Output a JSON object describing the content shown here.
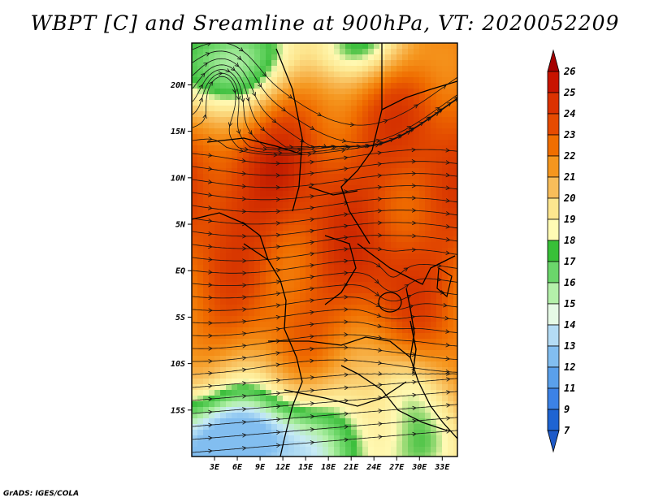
{
  "title": "WBPT [C] and Sreamline at 900hPa, VT: 2020052209",
  "credit": "GrADS: IGES/COLA",
  "map": {
    "lat_range": [
      -20,
      24.5
    ],
    "lon_range": [
      0,
      35
    ],
    "lat_labels": [
      "20N",
      "15N",
      "10N",
      "5N",
      "EQ",
      "5S",
      "10S",
      "15S"
    ],
    "lat_values": [
      20,
      15,
      10,
      5,
      0,
      -5,
      -10,
      -15
    ],
    "lon_labels": [
      "3E",
      "6E",
      "9E",
      "12E",
      "15E",
      "18E",
      "21E",
      "24E",
      "27E",
      "30E",
      "33E"
    ],
    "lon_values": [
      3,
      6,
      9,
      12,
      15,
      18,
      21,
      24,
      27,
      30,
      33
    ]
  },
  "colorbar": {
    "labels": [
      "26",
      "25",
      "24",
      "23",
      "22",
      "21",
      "20",
      "19",
      "18",
      "17",
      "16",
      "15",
      "14",
      "13",
      "12",
      "11",
      "9",
      "7"
    ],
    "colors": [
      "#a50000",
      "#c81400",
      "#dc3200",
      "#e64b00",
      "#f06e00",
      "#f5961e",
      "#f8bd5a",
      "#fde68f",
      "#fffbb4",
      "#38c038",
      "#6bd66b",
      "#b4f0aa",
      "#e6fae6",
      "#b4dcf5",
      "#82bef0",
      "#5aa0eb",
      "#3c82e6",
      "#1e64d2",
      "#1e5ac8"
    ]
  }
}
